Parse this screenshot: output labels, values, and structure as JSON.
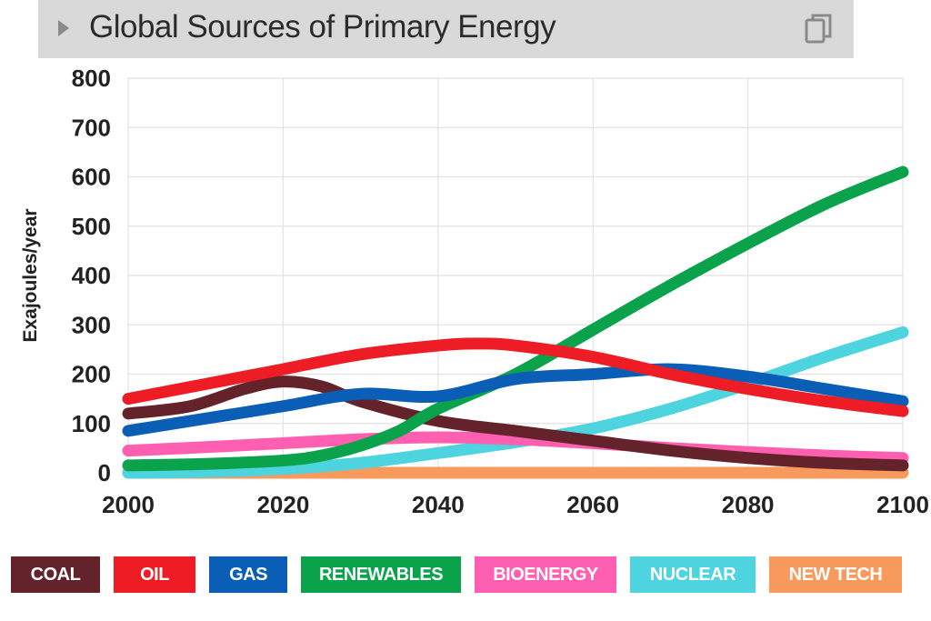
{
  "header": {
    "title": "Global Sources of Primary Energy"
  },
  "chart_data": {
    "type": "line",
    "ylabel": "Exajoules/year",
    "xlabel": "",
    "xlim": [
      2000,
      2100
    ],
    "ylim": [
      0,
      800
    ],
    "x_ticks": [
      2000,
      2020,
      2040,
      2060,
      2080,
      2100
    ],
    "y_ticks": [
      0,
      100,
      200,
      300,
      400,
      500,
      600,
      700,
      800
    ],
    "grid": true,
    "legend_position": "bottom",
    "series": [
      {
        "name": "NEW TECH",
        "color": "#f79a5b",
        "x": [
          2000,
          2020,
          2040,
          2060,
          2080,
          2100
        ],
        "values": [
          0,
          0,
          0,
          0,
          0,
          0
        ]
      },
      {
        "name": "NUCLEAR",
        "color": "#4dd4de",
        "x": [
          2000,
          2010,
          2020,
          2030,
          2040,
          2050,
          2060,
          2070,
          2080,
          2090,
          2100
        ],
        "values": [
          0,
          2,
          8,
          20,
          40,
          62,
          90,
          130,
          180,
          235,
          285
        ]
      },
      {
        "name": "BIOENERGY",
        "color": "#ff5fb0",
        "x": [
          2000,
          2010,
          2020,
          2030,
          2040,
          2050,
          2060,
          2070,
          2080,
          2090,
          2100
        ],
        "values": [
          45,
          52,
          60,
          68,
          72,
          68,
          60,
          50,
          42,
          35,
          30
        ]
      },
      {
        "name": "COAL",
        "color": "#64232a",
        "x": [
          2000,
          2008,
          2015,
          2020,
          2025,
          2030,
          2040,
          2050,
          2060,
          2070,
          2080,
          2090,
          2100
        ],
        "values": [
          120,
          135,
          170,
          185,
          175,
          145,
          105,
          85,
          65,
          45,
          30,
          20,
          15
        ]
      },
      {
        "name": "RENEWABLES",
        "color": "#0aa24a",
        "x": [
          2000,
          2010,
          2020,
          2025,
          2030,
          2035,
          2040,
          2050,
          2060,
          2070,
          2080,
          2090,
          2100
        ],
        "values": [
          15,
          18,
          25,
          35,
          55,
          85,
          130,
          200,
          290,
          380,
          465,
          545,
          610
        ]
      },
      {
        "name": "GAS",
        "color": "#0a5eb5",
        "x": [
          2000,
          2010,
          2020,
          2030,
          2040,
          2050,
          2060,
          2070,
          2080,
          2090,
          2100
        ],
        "values": [
          85,
          110,
          135,
          160,
          155,
          190,
          200,
          210,
          195,
          170,
          145
        ]
      },
      {
        "name": "OIL",
        "color": "#ee1c24",
        "x": [
          2000,
          2010,
          2020,
          2030,
          2040,
          2045,
          2050,
          2060,
          2070,
          2080,
          2090,
          2100
        ],
        "values": [
          150,
          180,
          210,
          240,
          258,
          262,
          258,
          235,
          200,
          170,
          145,
          125
        ]
      }
    ]
  },
  "legend": [
    {
      "label": "COAL",
      "color": "#64232a"
    },
    {
      "label": "OIL",
      "color": "#ee1c24"
    },
    {
      "label": "GAS",
      "color": "#0a5eb5"
    },
    {
      "label": "RENEWABLES",
      "color": "#0aa24a"
    },
    {
      "label": "BIOENERGY",
      "color": "#ff5fb0"
    },
    {
      "label": "NUCLEAR",
      "color": "#4dd4de"
    },
    {
      "label": "NEW TECH",
      "color": "#f79a5b"
    }
  ]
}
